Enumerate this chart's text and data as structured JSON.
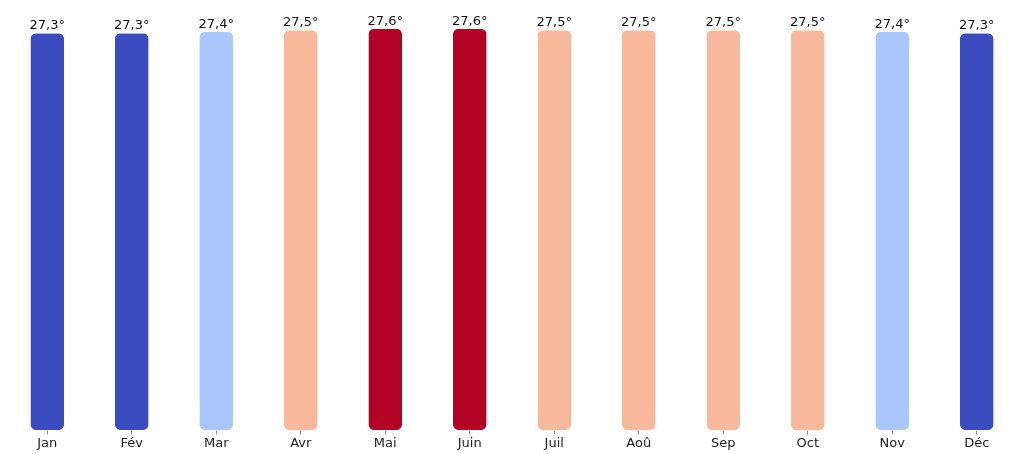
{
  "chart_data": {
    "type": "bar",
    "categories": [
      "Jan",
      "Fév",
      "Mar",
      "Avr",
      "Mai",
      "Juin",
      "Juil",
      "Aoû",
      "Sep",
      "Oct",
      "Nov",
      "Déc"
    ],
    "values": [
      27.3,
      27.3,
      27.4,
      27.5,
      27.6,
      27.6,
      27.5,
      27.5,
      27.5,
      27.5,
      27.4,
      27.3
    ],
    "colors": [
      "#3b4cc0",
      "#3b4cc0",
      "#aac7fd",
      "#f7b89c",
      "#b40426",
      "#b40426",
      "#f7b89c",
      "#f7b89c",
      "#f7b89c",
      "#f7b89c",
      "#aac7fd",
      "#3b4cc0"
    ],
    "value_labels": [
      "27,3°",
      "27,3°",
      "27,4°",
      "27,5°",
      "27,6°",
      "27,6°",
      "27,5°",
      "27,5°",
      "27,5°",
      "27,5°",
      "27,4°",
      "27,3°"
    ],
    "grid": false
  }
}
